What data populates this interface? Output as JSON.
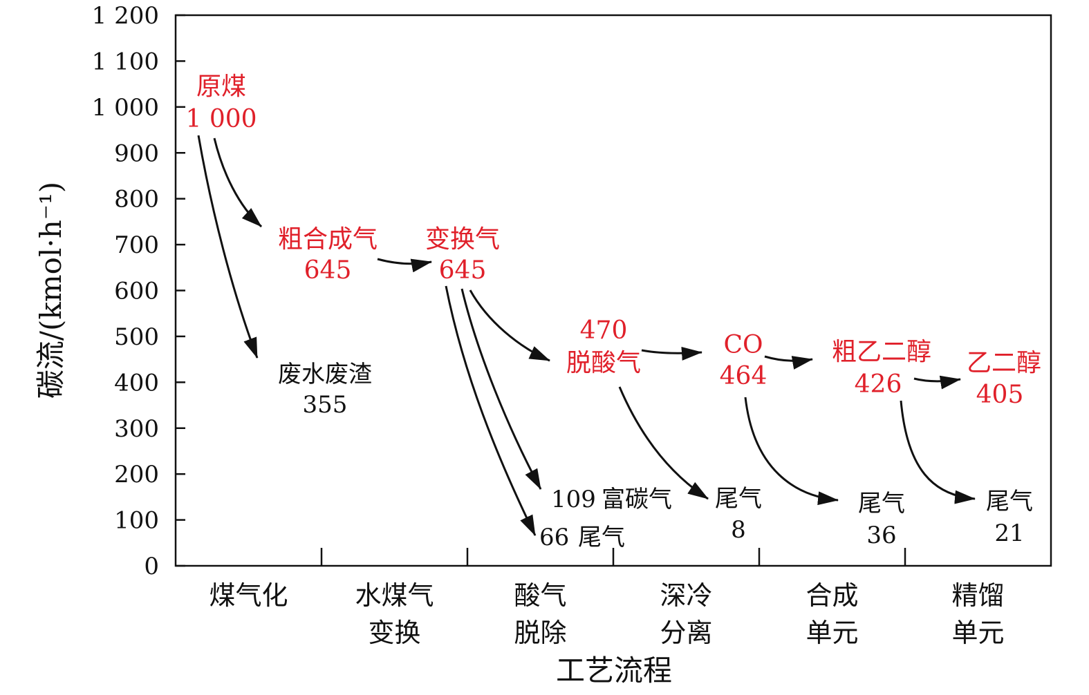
{
  "chart_data": {
    "type": "diagram-flow",
    "title": "",
    "ylabel": "碳流/(kmol·h⁻¹)",
    "xlabel": "工艺流程",
    "ylim": [
      0,
      1200
    ],
    "yticks": [
      "0",
      "100",
      "200",
      "300",
      "400",
      "500",
      "600",
      "700",
      "800",
      "900",
      "1 000",
      "1 100",
      "1 200"
    ],
    "categories": [
      {
        "line1": "煤气化",
        "line2": ""
      },
      {
        "line1": "水煤气",
        "line2": "变换"
      },
      {
        "line1": "酸气",
        "line2": "脱除"
      },
      {
        "line1": "深冷",
        "line2": "分离"
      },
      {
        "line1": "合成",
        "line2": "单元"
      },
      {
        "line1": "精馏",
        "line2": "单元"
      }
    ],
    "main_stream": [
      {
        "name": "原煤",
        "value_label": "1 000",
        "value": 1000
      },
      {
        "name": "粗合成气",
        "value_label": "645",
        "value": 645
      },
      {
        "name": "变换气",
        "value_label": "645",
        "value": 645
      },
      {
        "name": "脱酸气",
        "value_label": "470",
        "value": 470
      },
      {
        "name": "CO",
        "value_label": "464",
        "value": 464
      },
      {
        "name": "粗乙二醇",
        "value_label": "426",
        "value": 426
      },
      {
        "name": "乙二醇",
        "value_label": "405",
        "value": 405
      }
    ],
    "side_streams": [
      {
        "name": "废水废渣",
        "value_label": "355",
        "value": 355
      },
      {
        "name": "富碳气",
        "value_label": "109",
        "value": 109
      },
      {
        "name": "尾气",
        "value_label": "66",
        "value": 66
      },
      {
        "name": "尾气",
        "value_label": "8",
        "value": 8
      },
      {
        "name": "尾气",
        "value_label": "36",
        "value": 36
      },
      {
        "name": "尾气",
        "value_label": "21",
        "value": 21
      }
    ],
    "colors": {
      "main": "#e0202a",
      "side": "#111111",
      "arrow": "#111111",
      "axis": "#111111"
    }
  }
}
